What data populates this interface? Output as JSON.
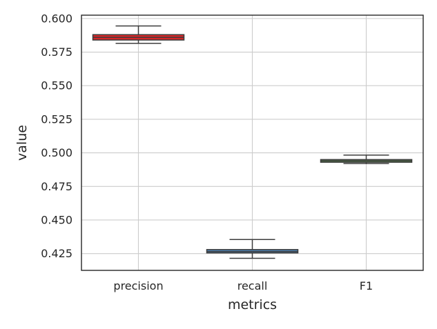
{
  "chart_data": {
    "type": "box",
    "title": "",
    "xlabel": "metrics",
    "ylabel": "value",
    "categories": [
      "precision",
      "recall",
      "F1"
    ],
    "ylim": [
      0.4125,
      0.6025
    ],
    "yticks": [
      0.425,
      0.45,
      0.475,
      0.5,
      0.525,
      0.55,
      0.575,
      0.6
    ],
    "ytick_labels": [
      "0.425",
      "0.450",
      "0.475",
      "0.500",
      "0.525",
      "0.550",
      "0.575",
      "0.600"
    ],
    "grid": true,
    "boxes": [
      {
        "category": "precision",
        "whislo": 0.5815,
        "q1": 0.584,
        "med": 0.586,
        "q3": 0.588,
        "whishi": 0.5945,
        "color": "#d62728"
      },
      {
        "category": "recall",
        "whislo": 0.4215,
        "q1": 0.4255,
        "med": 0.4265,
        "q3": 0.428,
        "whishi": 0.4355,
        "color": "#4c7eac"
      },
      {
        "category": "F1",
        "whislo": 0.492,
        "q1": 0.493,
        "med": 0.494,
        "q3": 0.495,
        "whishi": 0.4983,
        "color": "#5d8e4f"
      }
    ]
  }
}
